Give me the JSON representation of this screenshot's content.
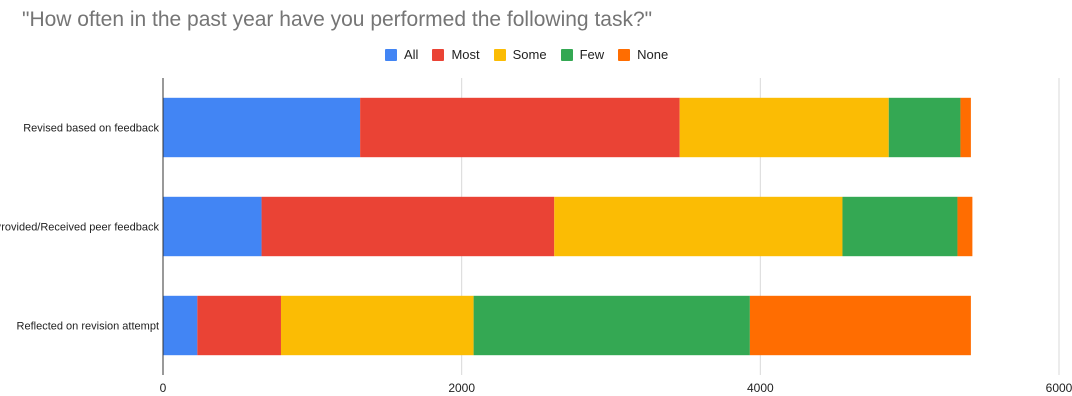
{
  "chart_data": {
    "type": "bar",
    "orientation": "horizontal",
    "stacked": true,
    "title": "\"How often in the past year have you performed the following task?\"",
    "categories": [
      "Revised based on feedback",
      "Provided/Received peer feedback",
      "Reflected on revision attempt"
    ],
    "series": [
      {
        "name": "All",
        "color": "#4285f4",
        "values": [
          1320,
          660,
          230
        ]
      },
      {
        "name": "Most",
        "color": "#ea4335",
        "values": [
          2140,
          1960,
          560
        ]
      },
      {
        "name": "Some",
        "color": "#fbbc04",
        "values": [
          1400,
          1930,
          1290
        ]
      },
      {
        "name": "Few",
        "color": "#34a853",
        "values": [
          480,
          770,
          1850
        ]
      },
      {
        "name": "None",
        "color": "#ff6d01",
        "values": [
          70,
          100,
          1480
        ]
      }
    ],
    "xlim": [
      0,
      6000
    ],
    "xticks": [
      0,
      2000,
      4000,
      6000
    ],
    "xlabel": "",
    "ylabel": "",
    "grid": true,
    "legend_position": "top"
  }
}
